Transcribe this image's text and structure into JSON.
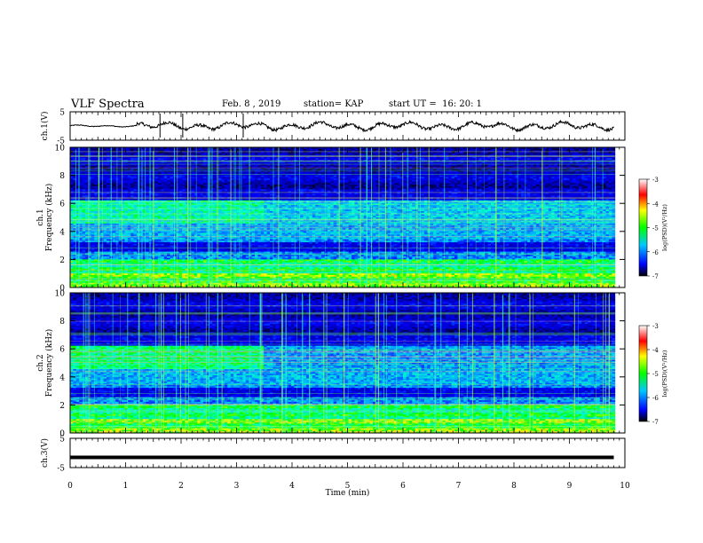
{
  "header": {
    "title": "VLF Spectra",
    "date": "Feb. 8 , 2019",
    "station": "station= KAP",
    "start": "start UT =  16: 20: 1"
  },
  "chart_data": [
    {
      "type": "line",
      "panel": "ch1-waveform",
      "ylabel": "ch.1(V)",
      "ylim": [
        -5,
        5
      ],
      "yticks": [
        "5",
        "-5"
      ],
      "x_range_min": [
        0,
        9.8
      ],
      "approx_level": 0,
      "approx_amplitude": 1.5
    },
    {
      "type": "heatmap",
      "panel": "ch1-spectrogram",
      "ylabel": [
        "ch.1",
        "Frequency (kHz)"
      ],
      "ylim": [
        0,
        10
      ],
      "yticks": [
        "0",
        "2",
        "4",
        "6",
        "8",
        "10"
      ],
      "colorbar": {
        "label": "log(PSD)(V²/Hz)",
        "ticks": [
          "-3",
          "-4",
          "-5",
          "-6",
          "-7"
        ],
        "range": [
          -7,
          -3
        ]
      },
      "colors": [
        "#00004a",
        "#0000ff",
        "#00ffff",
        "#00ff00",
        "#ffff00",
        "#ff0000",
        "#ffffff"
      ]
    },
    {
      "type": "heatmap",
      "panel": "ch2-spectrogram",
      "ylabel": [
        "ch.2",
        "Frequency (kHz)"
      ],
      "ylim": [
        0,
        10
      ],
      "yticks": [
        "0",
        "2",
        "4",
        "6",
        "8",
        "10"
      ],
      "colorbar": {
        "label": "log(PSD)(V²/Hz)",
        "ticks": [
          "-3",
          "-4",
          "-5",
          "-6",
          "-7"
        ],
        "range": [
          -7,
          -3
        ]
      }
    },
    {
      "type": "line",
      "panel": "ch3-waveform",
      "ylabel": "ch.3(V)",
      "ylim": [
        -5,
        5
      ],
      "yticks": [
        "5",
        "-5"
      ],
      "level": -1.5,
      "x_range_min": [
        0,
        9.8
      ]
    }
  ],
  "xaxis": {
    "label": "Time (min)",
    "range": [
      0,
      10
    ],
    "ticks": [
      "0",
      "1",
      "2",
      "3",
      "4",
      "5",
      "6",
      "7",
      "8",
      "9",
      "10"
    ]
  }
}
